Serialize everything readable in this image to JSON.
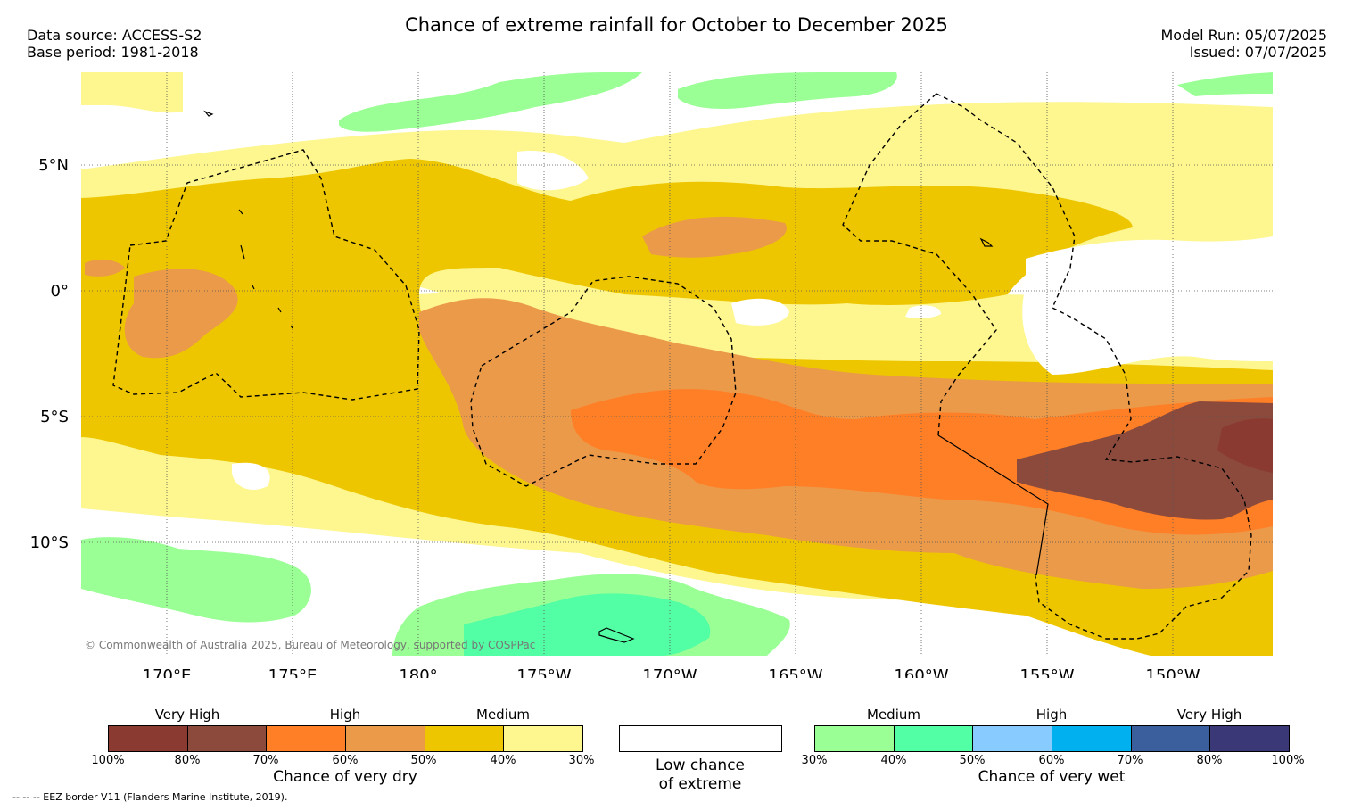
{
  "header": {
    "title": "Chance of extreme rainfall for October to December 2025",
    "data_source": "Data source: ACCESS-S2",
    "base_period": "Base period: 1981-2018",
    "model_run": "Model Run: 05/07/2025",
    "issued": "Issued: 07/07/2025"
  },
  "map": {
    "lat_labels": [
      "5°N",
      "0°",
      "5°S",
      "10°S"
    ],
    "lon_labels": [
      "170°E",
      "175°E",
      "180°",
      "175°W",
      "170°W",
      "165°W",
      "160°W",
      "155°W",
      "150°W"
    ],
    "copyright": "© Commonwealth of Australia 2025, Bureau of Meteorology, supported by COSPPac",
    "colors": {
      "dry_very_high_100": "#8b3a32",
      "dry_very_high_80": "#8b4a3c",
      "dry_high_70": "#ff7f27",
      "dry_high_60": "#eb9a4a",
      "dry_medium_50": "#edc600",
      "dry_medium_40": "#fef68e",
      "wet_medium_30": "#9aff94",
      "wet_medium_40": "#52ffa4",
      "wet_high_50": "#88ccff",
      "wet_high_60": "#00b0ef",
      "wet_very_high_70": "#3a5f9c",
      "wet_very_high_80": "#3b3878",
      "low": "#ffffff"
    }
  },
  "legend": {
    "dry": {
      "levels": [
        "Very High",
        "High",
        "Medium"
      ],
      "ticks": [
        "100%",
        "80%",
        "70%",
        "60%",
        "50%",
        "40%",
        "30%"
      ],
      "title": "Chance of very dry"
    },
    "low": {
      "line1": "Low chance",
      "line2": "of extreme"
    },
    "wet": {
      "levels": [
        "Medium",
        "High",
        "Very High"
      ],
      "ticks": [
        "30%",
        "40%",
        "50%",
        "60%",
        "70%",
        "80%",
        "100%"
      ],
      "title": "Chance of very wet"
    }
  },
  "footnote": "--  --  -- EEZ border V11 (Flanders Marine Institute, 2019)."
}
